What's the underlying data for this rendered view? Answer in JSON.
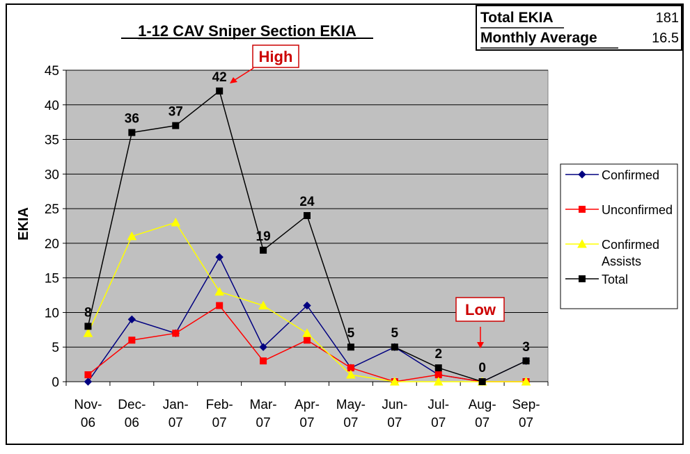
{
  "stats": {
    "total_label": "Total EKIA",
    "total_value": "181",
    "avg_label": "Monthly Average",
    "avg_value": "16.5"
  },
  "annotations": {
    "high": "High",
    "low": "Low"
  },
  "chart_data": {
    "type": "line",
    "title": "1-12 CAV Sniper Section EKIA",
    "xlabel": "",
    "ylabel": "EKIA",
    "ylim": [
      0,
      45
    ],
    "yticks": [
      0,
      5,
      10,
      15,
      20,
      25,
      30,
      35,
      40,
      45
    ],
    "grid": true,
    "legend_position": "right",
    "categories": [
      [
        "Nov-",
        "06"
      ],
      [
        "Dec-",
        "06"
      ],
      [
        "Jan-",
        "07"
      ],
      [
        "Feb-",
        "07"
      ],
      [
        "Mar-",
        "07"
      ],
      [
        "Apr-",
        "07"
      ],
      [
        "May-",
        "07"
      ],
      [
        "Jun-",
        "07"
      ],
      [
        "Jul-",
        "07"
      ],
      [
        "Aug-",
        "07"
      ],
      [
        "Sep-",
        "07"
      ]
    ],
    "series": [
      {
        "name": "Confirmed",
        "color": "#000080",
        "marker": "diamond",
        "values": [
          0,
          9,
          7,
          18,
          5,
          11,
          2,
          5,
          1,
          0,
          3
        ]
      },
      {
        "name": "Unconfirmed",
        "color": "#ff0000",
        "marker": "square",
        "values": [
          1,
          6,
          7,
          11,
          3,
          6,
          2,
          0,
          1,
          0,
          0
        ]
      },
      {
        "name": "Confirmed Assists",
        "color": "#ffff00",
        "marker": "triangle",
        "values": [
          7,
          21,
          23,
          13,
          11,
          7,
          1,
          0,
          0,
          0,
          0
        ]
      },
      {
        "name": "Total",
        "color": "#000000",
        "marker": "square",
        "values": [
          8,
          36,
          37,
          42,
          19,
          24,
          5,
          5,
          2,
          0,
          3
        ],
        "data_labels": [
          "8",
          "36",
          "37",
          "42",
          "19",
          "24",
          "5",
          "5",
          "2",
          "0",
          "3"
        ]
      }
    ],
    "plot_background": "#c0c0c0"
  }
}
